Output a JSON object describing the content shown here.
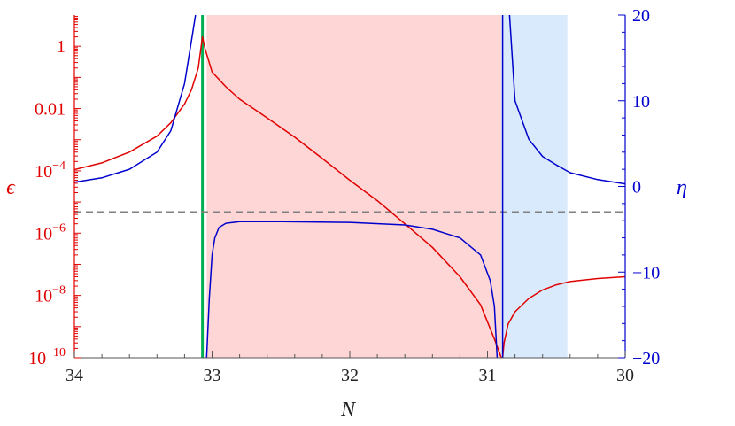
{
  "chart_data": {
    "type": "line",
    "xlabel": "N",
    "ylabel_left": "ϵ",
    "ylabel_right": "η",
    "x_axis": {
      "range": [
        34,
        30
      ],
      "reversed": true,
      "ticks": [
        34,
        33,
        32,
        31,
        30
      ],
      "tick_labels": [
        "34",
        "33",
        "32",
        "31",
        "30"
      ]
    },
    "left_axis": {
      "scale": "log",
      "range": [
        1e-10,
        10
      ],
      "color": "#e00000",
      "ticks": [
        {
          "value": 1,
          "label": "1"
        },
        {
          "value": 0.01,
          "label": "0.01"
        },
        {
          "value": 0.0001,
          "base": "10",
          "exp": "−4"
        },
        {
          "value": 1e-06,
          "base": "10",
          "exp": "−6"
        },
        {
          "value": 1e-08,
          "base": "10",
          "exp": "−8"
        },
        {
          "value": 1e-10,
          "base": "10",
          "exp": "−10"
        }
      ]
    },
    "right_axis": {
      "scale": "linear",
      "range": [
        -20,
        20
      ],
      "color": "#0000cc",
      "ticks": [
        {
          "value": 20,
          "label": "20"
        },
        {
          "value": 10,
          "label": "10"
        },
        {
          "value": 0,
          "label": "0"
        },
        {
          "value": -10,
          "label": "−10"
        },
        {
          "value": -20,
          "label": "−20"
        }
      ]
    },
    "shaded_regions": [
      {
        "x_from": 33.04,
        "x_to": 30.9,
        "color": "#ffd6d6"
      },
      {
        "x_from": 30.9,
        "x_to": 30.42,
        "color": "#d8eafb"
      }
    ],
    "reference_lines": [
      {
        "orientation": "vertical",
        "x": 33.07,
        "color": "#00b050"
      },
      {
        "orientation": "horizontal",
        "axis": "right",
        "y": -3,
        "color": "#808080",
        "style": "dashed"
      }
    ],
    "series": [
      {
        "axis": "left",
        "color": "#e00000",
        "points": [
          [
            34.0,
            0.00011
          ],
          [
            33.8,
            0.00018
          ],
          [
            33.6,
            0.0004
          ],
          [
            33.4,
            0.0013
          ],
          [
            33.3,
            0.0035
          ],
          [
            33.2,
            0.014
          ],
          [
            33.15,
            0.04
          ],
          [
            33.1,
            0.2
          ],
          [
            33.07,
            2
          ],
          [
            33.05,
            0.8
          ],
          [
            33.0,
            0.15
          ],
          [
            32.9,
            0.05
          ],
          [
            32.8,
            0.02
          ],
          [
            32.6,
            0.005
          ],
          [
            32.4,
            0.0012
          ],
          [
            32.2,
            0.00025
          ],
          [
            32.0,
            5e-05
          ],
          [
            31.8,
            1.1e-05
          ],
          [
            31.6,
            2e-06
          ],
          [
            31.4,
            3.5e-07
          ],
          [
            31.2,
            4e-08
          ],
          [
            31.05,
            5e-09
          ],
          [
            30.95,
            4e-10
          ],
          [
            30.9,
            1e-10
          ],
          [
            30.89,
            1e-10
          ],
          [
            30.88,
            3e-10
          ],
          [
            30.85,
            1.2e-09
          ],
          [
            30.8,
            3e-09
          ],
          [
            30.7,
            8e-09
          ],
          [
            30.6,
            1.5e-08
          ],
          [
            30.5,
            2.2e-08
          ],
          [
            30.4,
            2.8e-08
          ],
          [
            30.2,
            3.5e-08
          ],
          [
            30.0,
            4e-08
          ]
        ]
      },
      {
        "axis": "right",
        "color": "#0000cc",
        "segments": [
          [
            [
              34.0,
              0.5
            ],
            [
              33.8,
              1.0
            ],
            [
              33.6,
              2.0
            ],
            [
              33.4,
              4.0
            ],
            [
              33.3,
              6.5
            ],
            [
              33.2,
              12
            ],
            [
              33.15,
              17
            ],
            [
              33.12,
              20
            ]
          ],
          [
            [
              33.04,
              -20
            ],
            [
              33.02,
              -13
            ],
            [
              33.0,
              -8
            ],
            [
              32.98,
              -6
            ],
            [
              32.95,
              -4.8
            ],
            [
              32.9,
              -4.3
            ],
            [
              32.8,
              -4.1
            ],
            [
              32.5,
              -4.1
            ],
            [
              32.0,
              -4.2
            ],
            [
              31.6,
              -4.5
            ],
            [
              31.4,
              -5.0
            ],
            [
              31.2,
              -6.0
            ],
            [
              31.05,
              -8.0
            ],
            [
              30.98,
              -11
            ],
            [
              30.95,
              -14
            ],
            [
              30.93,
              -20
            ]
          ],
          [
            [
              30.89,
              -20
            ],
            [
              30.89,
              20
            ]
          ],
          [
            [
              30.84,
              20
            ],
            [
              30.8,
              10
            ],
            [
              30.7,
              5.5
            ],
            [
              30.6,
              3.5
            ],
            [
              30.5,
              2.5
            ],
            [
              30.4,
              1.6
            ],
            [
              30.2,
              0.8
            ],
            [
              30.0,
              0.3
            ]
          ]
        ]
      }
    ]
  }
}
